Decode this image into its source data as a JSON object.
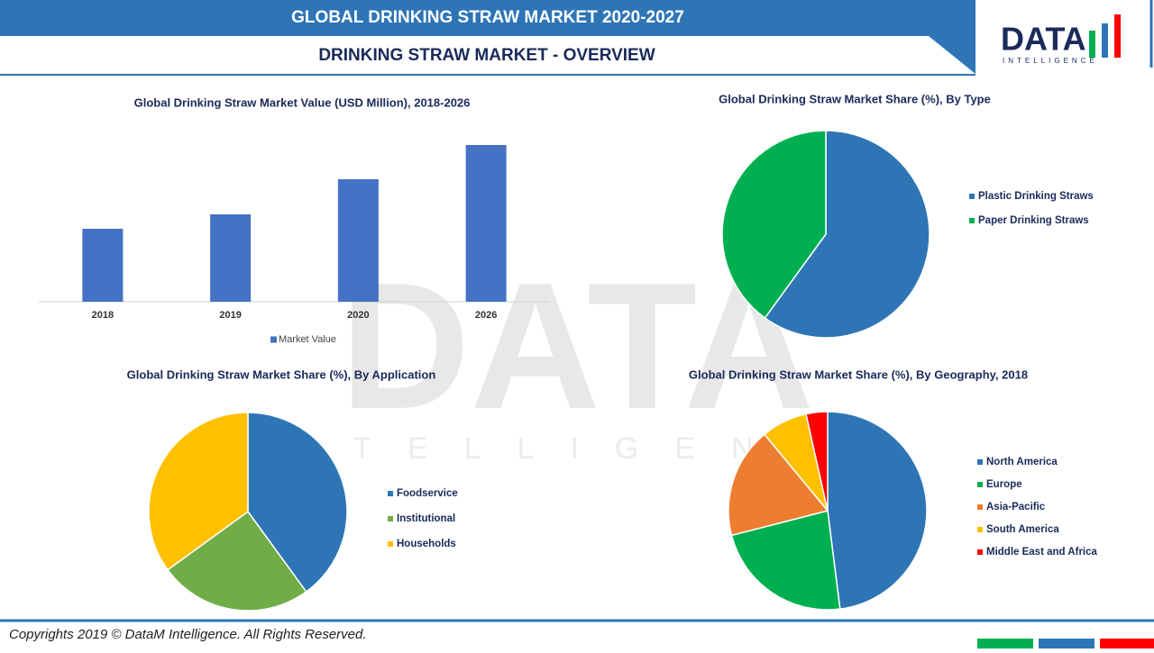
{
  "header": {
    "title": "GLOBAL DRINKING STRAW MARKET 2020-2027",
    "subtitle": "DRINKING STRAW MARKET - OVERVIEW"
  },
  "logo": {
    "name": "DATA",
    "tagline": "INTELLIGENCE"
  },
  "footer": {
    "text": "Copyrights 2019 © DataM Intelligence. All Rights Reserved."
  },
  "chart_data": [
    {
      "type": "bar",
      "title": "Global Drinking Straw Market Value (USD Million), 2018-2026",
      "categories": [
        "2018",
        "2019",
        "2020",
        "2026"
      ],
      "series": [
        {
          "name": "Market Value",
          "color": "#4472c4",
          "values": [
            81,
            97,
            136,
            174
          ]
        }
      ]
    },
    {
      "type": "pie",
      "title": "Global Drinking Straw Market Share (%), By Type",
      "categories": [
        "Plastic Drinking Straws",
        "Paper Drinking Straws"
      ],
      "values": [
        60,
        40
      ],
      "colors": [
        "#2e75b6",
        "#00b050"
      ]
    },
    {
      "type": "pie",
      "title": "Global Drinking Straw  Market Share (%), By Application",
      "categories": [
        "Foodservice",
        "Institutional",
        "Households"
      ],
      "values": [
        40,
        25,
        35
      ],
      "colors": [
        "#2e75b6",
        "#70ad47",
        "#ffc000"
      ]
    },
    {
      "type": "pie",
      "title": "Global Drinking Straw  Market Share (%), By Geography, 2018",
      "categories": [
        "North America",
        "Europe",
        "Asia-Pacific",
        "South America",
        "Middle East and Africa"
      ],
      "values": [
        48,
        23,
        18,
        7.5,
        3.5
      ],
      "colors": [
        "#2e75b6",
        "#00b050",
        "#ed7d31",
        "#ffc000",
        "#ff0000"
      ]
    }
  ]
}
